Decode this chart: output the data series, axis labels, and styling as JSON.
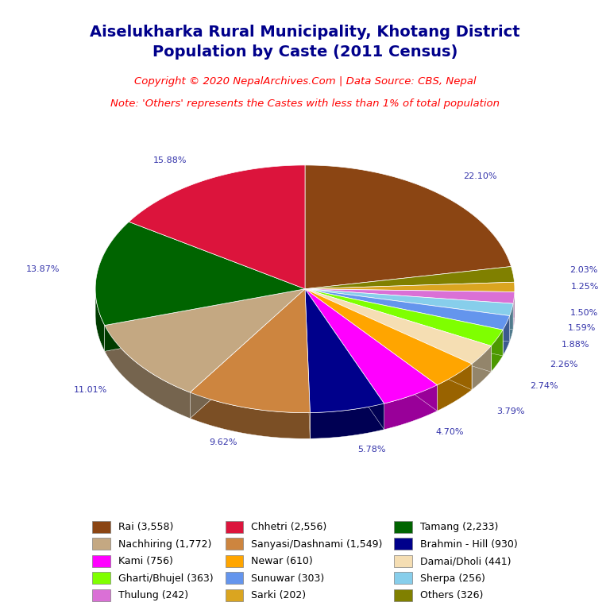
{
  "title": "Aiselukharka Rural Municipality, Khotang District\nPopulation by Caste (2011 Census)",
  "copyright": "Copyright © 2020 NepalArchives.Com | Data Source: CBS, Nepal",
  "note": "Note: 'Others' represents the Castes with less than 1% of total population",
  "title_color": "#00008B",
  "copyright_color": "#FF0000",
  "note_color": "#FF0000",
  "background_color": "#FFFFFF",
  "label_color": "#3333AA",
  "ordered_values": [
    3558,
    326,
    202,
    242,
    256,
    303,
    363,
    441,
    610,
    756,
    930,
    1549,
    1772,
    2233,
    2556
  ],
  "ordered_colors": [
    "#8B4513",
    "#808000",
    "#DAA520",
    "#DA70D6",
    "#87CEEB",
    "#6495ED",
    "#7FFF00",
    "#F5DEB3",
    "#FFA500",
    "#FF00FF",
    "#00008B",
    "#CD853F",
    "#C4A882",
    "#006400",
    "#DC143C"
  ],
  "ordered_pcts": [
    22.1,
    2.03,
    1.25,
    1.5,
    1.59,
    1.88,
    2.26,
    2.74,
    3.79,
    4.7,
    5.78,
    9.62,
    11.01,
    13.87,
    15.88
  ],
  "legend_col1": [
    [
      "Rai (3,558)",
      "#8B4513"
    ],
    [
      "Nachhiring (1,772)",
      "#C4A882"
    ],
    [
      "Kami (756)",
      "#FF00FF"
    ],
    [
      "Gharti/Bhujel (363)",
      "#7FFF00"
    ],
    [
      "Thulung (242)",
      "#DA70D6"
    ]
  ],
  "legend_col2": [
    [
      "Chhetri (2,556)",
      "#DC143C"
    ],
    [
      "Sanyasi/Dashnami (1,549)",
      "#CD853F"
    ],
    [
      "Newar (610)",
      "#FFA500"
    ],
    [
      "Sunuwar (303)",
      "#6495ED"
    ],
    [
      "Sarki (202)",
      "#DAA520"
    ]
  ],
  "legend_col3": [
    [
      "Tamang (2,233)",
      "#006400"
    ],
    [
      "Brahmin - Hill (930)",
      "#00008B"
    ],
    [
      "Damai/Dholi (441)",
      "#F5DEB3"
    ],
    [
      "Sherpa (256)",
      "#87CEEB"
    ],
    [
      "Others (326)",
      "#808000"
    ]
  ]
}
